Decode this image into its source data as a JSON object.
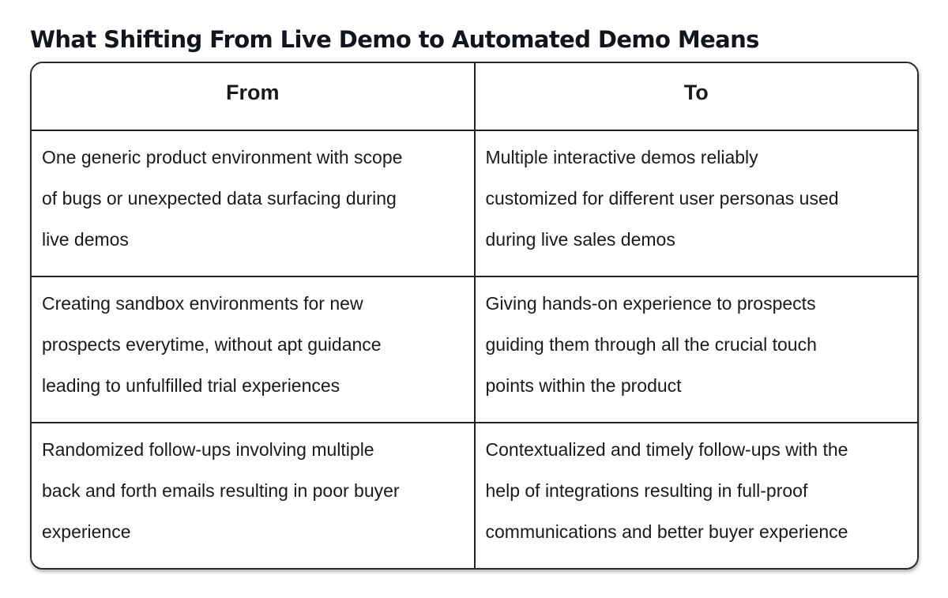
{
  "page": {
    "title": "What Shifting From Live Demo to Automated Demo Means"
  },
  "colors": {
    "background": "#ffffff",
    "card_border": "#2a2a2a",
    "grid_border": "#222222",
    "title_text": "#12151e",
    "body_text": "#1a1a1a"
  },
  "table": {
    "headers": [
      "From",
      "To"
    ],
    "rows": [
      {
        "from": [
          "One generic product environment with scope",
          "of bugs or unexpected data surfacing during",
          "live demos"
        ],
        "to": [
          "Multiple interactive demos reliably",
          "customized for different user personas used",
          "during live sales demos"
        ]
      },
      {
        "from": [
          "Creating sandbox environments for new",
          "prospects everytime, without apt guidance",
          "leading to unfulfilled trial experiences"
        ],
        "to": [
          "Giving hands-on experience to prospects",
          "guiding them through all the crucial touch",
          "points within the product"
        ]
      },
      {
        "from": [
          "Randomized follow-ups involving multiple",
          "back and forth emails resulting in poor buyer",
          "experience"
        ],
        "to": [
          "Contextualized and timely follow-ups with the",
          "help of integrations resulting in full-proof",
          "communications and better buyer experience"
        ]
      }
    ]
  }
}
